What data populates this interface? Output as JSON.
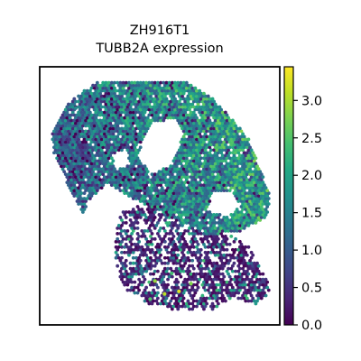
{
  "chart_data": {
    "type": "scatter",
    "subtype": "spatial-expression-map",
    "title": [
      "ZH916T1",
      "TUBB2A expression"
    ],
    "xlabel": "",
    "ylabel": "",
    "grid": false,
    "colormap": "viridis",
    "colorbar": {
      "range": [
        0.0,
        3.45
      ],
      "ticks": [
        0.0,
        0.5,
        1.0,
        1.5,
        2.0,
        2.5,
        3.0
      ],
      "tick_labels": [
        "0.0",
        "0.5",
        "1.0",
        "1.5",
        "2.0",
        "2.5",
        "3.0"
      ],
      "placement": "right"
    },
    "tissue_regions": [
      {
        "name": "upper-tissue",
        "typical_value": 1.4
      },
      {
        "name": "lower-tissue",
        "typical_value": 0.6
      }
    ],
    "notable_points": [
      {
        "x": 0.37,
        "y": 0.89,
        "value": 2.1
      },
      {
        "x": 0.15,
        "y": 0.84,
        "value": 1.6
      },
      {
        "x": 0.58,
        "y": 0.13,
        "value": 3.3
      },
      {
        "x": 0.52,
        "y": 0.12,
        "value": 3.1
      },
      {
        "x": 0.48,
        "y": 0.17,
        "value": 2.9
      },
      {
        "x": 0.46,
        "y": 0.1,
        "value": 2.5
      },
      {
        "x": 0.55,
        "y": 0.2,
        "value": 2.4
      },
      {
        "x": 0.63,
        "y": 0.16,
        "value": 2.8
      }
    ]
  }
}
